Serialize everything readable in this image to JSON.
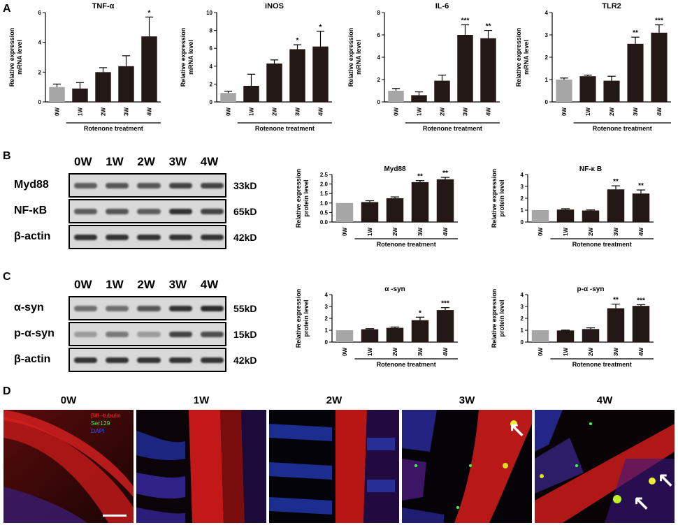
{
  "panels": {
    "a": "A",
    "b": "B",
    "c": "C",
    "d": "D"
  },
  "common": {
    "treatment": "Rotenone treatment",
    "categories": [
      "0W",
      "1W",
      "2W",
      "3W",
      "4W"
    ]
  },
  "blot_b": {
    "lanes": [
      "0W",
      "1W",
      "2W",
      "3W",
      "4W"
    ],
    "rows": [
      {
        "name": "Myd88",
        "kd": "33kD",
        "intensity": [
          0.7,
          0.75,
          0.75,
          0.85,
          0.85
        ]
      },
      {
        "name": "NF-κB",
        "kd": "65kD",
        "intensity": [
          0.7,
          0.75,
          0.7,
          0.95,
          0.85
        ]
      },
      {
        "name": "β-actin",
        "kd": "42kD",
        "intensity": [
          0.95,
          0.95,
          0.95,
          0.95,
          0.95
        ]
      }
    ]
  },
  "blot_c": {
    "lanes": [
      "0W",
      "1W",
      "2W",
      "3W",
      "4W"
    ],
    "rows": [
      {
        "name": "α-syn",
        "kd": "55kD",
        "intensity": [
          0.6,
          0.6,
          0.75,
          0.95,
          1.0
        ]
      },
      {
        "name": "p-α-syn",
        "kd": "15kD",
        "intensity": [
          0.35,
          0.55,
          0.35,
          0.85,
          0.8
        ]
      },
      {
        "name": "β-actin",
        "kd": "42kD",
        "intensity": [
          0.95,
          0.95,
          0.95,
          0.95,
          0.95
        ]
      }
    ]
  },
  "micro": {
    "labels": [
      "0W",
      "1W",
      "2W",
      "3W",
      "4W"
    ],
    "legend": [
      "βIII--tubulin",
      "Ser129",
      "DAPI"
    ],
    "legend_colors": [
      "#ff3030",
      "#30ff30",
      "#3050ff"
    ]
  },
  "chart_data": [
    {
      "type": "bar",
      "title": "TNF-α",
      "ylabel": "Relative expression mRNA level",
      "xlabel": "Rotenone treatment",
      "categories": [
        "0W",
        "1W",
        "2W",
        "3W",
        "4W"
      ],
      "values": [
        1.0,
        0.9,
        2.0,
        2.4,
        4.4
      ],
      "errors": [
        0.2,
        0.4,
        0.3,
        0.7,
        1.3
      ],
      "significance": [
        "",
        "",
        "",
        "",
        "*"
      ],
      "ylim": [
        0,
        6
      ],
      "yticks": [
        0,
        2,
        4,
        6
      ],
      "bar_colors": [
        "#a6a6a6",
        "#231815",
        "#231815",
        "#231815",
        "#231815"
      ]
    },
    {
      "type": "bar",
      "title": "iNOS",
      "ylabel": "Relative expression mRNA level",
      "xlabel": "Rotenone treatment",
      "categories": [
        "0W",
        "1W",
        "2W",
        "3W",
        "4W"
      ],
      "values": [
        1.0,
        1.8,
        4.3,
        5.9,
        6.2
      ],
      "errors": [
        0.2,
        1.3,
        0.4,
        0.5,
        1.7
      ],
      "significance": [
        "",
        "",
        "",
        "*",
        "*"
      ],
      "ylim": [
        0,
        10
      ],
      "yticks": [
        0,
        2,
        4,
        6,
        8,
        10
      ],
      "bar_colors": [
        "#a6a6a6",
        "#231815",
        "#231815",
        "#231815",
        "#231815"
      ]
    },
    {
      "type": "bar",
      "title": "IL-6",
      "ylabel": "Relative expression mRNA level",
      "xlabel": "Rotenone treatment",
      "categories": [
        "0W",
        "1W",
        "2W",
        "3W",
        "4W"
      ],
      "values": [
        1.0,
        0.6,
        1.9,
        6.0,
        5.7
      ],
      "errors": [
        0.2,
        0.3,
        0.5,
        0.9,
        0.7
      ],
      "significance": [
        "",
        "",
        "",
        "***",
        "**"
      ],
      "ylim": [
        0,
        8
      ],
      "yticks": [
        0,
        2,
        4,
        6,
        8
      ],
      "bar_colors": [
        "#a6a6a6",
        "#231815",
        "#231815",
        "#231815",
        "#231815"
      ]
    },
    {
      "type": "bar",
      "title": "TLR2",
      "ylabel": "Relative expression mRNA level",
      "xlabel": "Rotenone treatment",
      "categories": [
        "0W",
        "1W",
        "2W",
        "3W",
        "4W"
      ],
      "values": [
        1.0,
        1.15,
        0.95,
        2.6,
        3.1
      ],
      "errors": [
        0.07,
        0.05,
        0.2,
        0.3,
        0.35
      ],
      "significance": [
        "",
        "",
        "",
        "**",
        "***"
      ],
      "ylim": [
        0,
        4
      ],
      "yticks": [
        0,
        1,
        2,
        3,
        4
      ],
      "bar_colors": [
        "#a6a6a6",
        "#231815",
        "#231815",
        "#231815",
        "#231815"
      ]
    },
    {
      "type": "bar",
      "title": "Myd88",
      "ylabel": "Relative expression protein level",
      "xlabel": "Rotenone treatment",
      "categories": [
        "0W",
        "1W",
        "2W",
        "3W",
        "4W"
      ],
      "values": [
        1.0,
        1.05,
        1.25,
        2.1,
        2.25
      ],
      "errors": [
        0,
        0.07,
        0.07,
        0.08,
        0.1
      ],
      "significance": [
        "",
        "",
        "",
        "**",
        "**"
      ],
      "ylim": [
        0,
        2.5
      ],
      "yticks": [
        0,
        0.5,
        1.0,
        1.5,
        2.0,
        2.5
      ],
      "bar_colors": [
        "#a6a6a6",
        "#231815",
        "#231815",
        "#231815",
        "#231815"
      ]
    },
    {
      "type": "bar",
      "title": "NF-κ B",
      "ylabel": "Relative expression protein level",
      "xlabel": "Rotenone treatment",
      "categories": [
        "0W",
        "1W",
        "2W",
        "3W",
        "4W"
      ],
      "values": [
        1.0,
        1.05,
        0.97,
        2.75,
        2.4
      ],
      "errors": [
        0,
        0.07,
        0.05,
        0.3,
        0.3
      ],
      "significance": [
        "",
        "",
        "",
        "**",
        "**"
      ],
      "ylim": [
        0,
        4
      ],
      "yticks": [
        0,
        1,
        2,
        3,
        4
      ],
      "bar_colors": [
        "#a6a6a6",
        "#231815",
        "#231815",
        "#231815",
        "#231815"
      ]
    },
    {
      "type": "bar",
      "title": "α -syn",
      "ylabel": "Relative expression protein level",
      "xlabel": "Rotenone treatment",
      "categories": [
        "0W",
        "1W",
        "2W",
        "3W",
        "4W"
      ],
      "values": [
        1.0,
        1.08,
        1.2,
        1.85,
        2.7
      ],
      "errors": [
        0,
        0.05,
        0.07,
        0.25,
        0.2
      ],
      "significance": [
        "",
        "",
        "",
        "*",
        "***"
      ],
      "ylim": [
        0,
        4
      ],
      "yticks": [
        0,
        1,
        2,
        3,
        4
      ],
      "bar_colors": [
        "#a6a6a6",
        "#231815",
        "#231815",
        "#231815",
        "#231815"
      ]
    },
    {
      "type": "bar",
      "title": "p-α -syn",
      "ylabel": "Relative expression protein level",
      "xlabel": "Rotenone treatment",
      "categories": [
        "0W",
        "1W",
        "2W",
        "3W",
        "4W"
      ],
      "values": [
        1.0,
        0.98,
        1.1,
        2.85,
        3.05
      ],
      "errors": [
        0,
        0.03,
        0.1,
        0.35,
        0.1
      ],
      "significance": [
        "",
        "",
        "",
        "**",
        "***"
      ],
      "ylim": [
        0,
        4
      ],
      "yticks": [
        0,
        1,
        2,
        3,
        4
      ],
      "bar_colors": [
        "#a6a6a6",
        "#231815",
        "#231815",
        "#231815",
        "#231815"
      ]
    }
  ]
}
